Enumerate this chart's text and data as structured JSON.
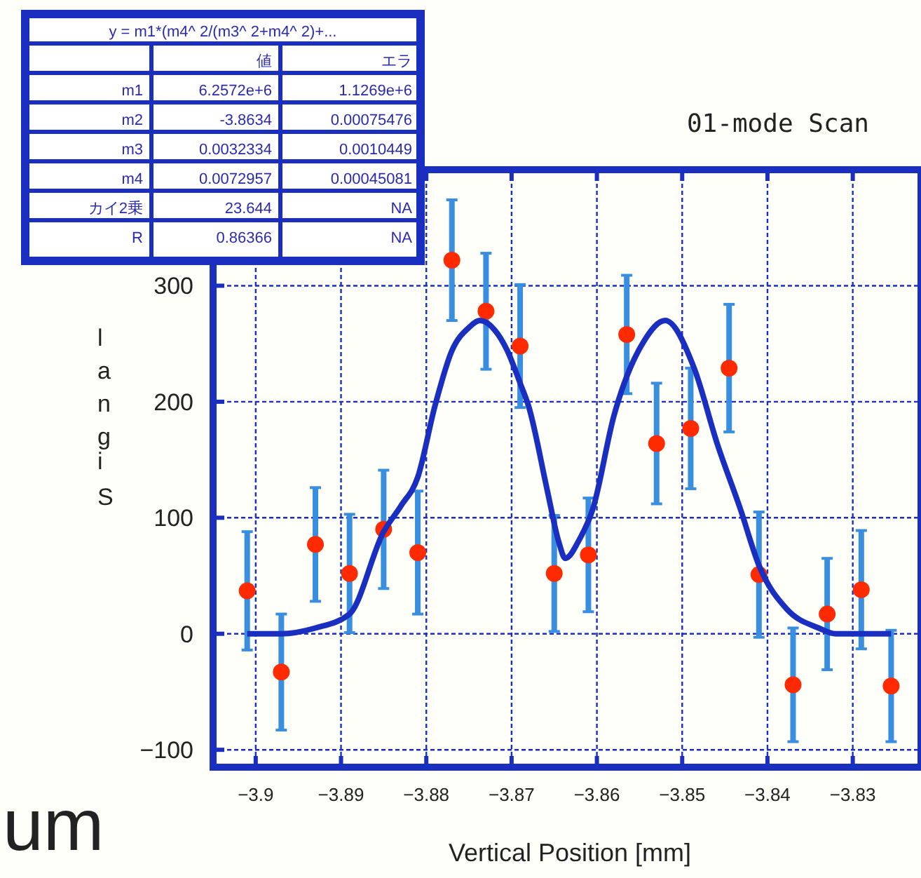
{
  "chart_data": {
    "type": "scatter",
    "title": "01-mode Scan",
    "xlabel": "Vertical Position  [mm]",
    "ylabel": "Signal",
    "annotations": [
      "um",
      "y = m1*(m4^ 2/(m3^ 2+m4^ 2)+...",
      "値",
      "エラ",
      "m1",
      "6.2572e+6",
      "1.1269e+6",
      "m2",
      "-3.8634",
      "0.00075476",
      "m3",
      "0.0032334",
      "0.0010449",
      "m4",
      "0.0072957",
      "0.00045081",
      "カイ2乗",
      "23.644",
      "NA",
      "R",
      "0.86366",
      "NA"
    ],
    "xlim": [
      -3.905,
      -3.822
    ],
    "xticks": [
      -3.9,
      -3.89,
      -3.88,
      -3.87,
      -3.86,
      -3.85,
      -3.84,
      -3.83
    ],
    "ylim": [
      -115,
      400
    ],
    "yticks": [
      -100,
      0,
      100,
      200,
      300
    ],
    "grid": true,
    "series": [
      {
        "color": "#ff2a00",
        "marker": "circle",
        "x": [
          -3.901,
          -3.897,
          -3.893,
          -3.889,
          -3.885,
          -3.881,
          -3.877,
          -3.873,
          -3.869,
          -3.865,
          -3.861,
          -3.8565,
          -3.853,
          -3.849,
          -3.8445,
          -3.841,
          -3.837,
          -3.833,
          -3.829,
          -3.8255
        ],
        "values": [
          37,
          -33,
          77,
          52,
          90,
          70,
          322,
          278,
          248,
          52,
          68,
          258,
          164,
          177,
          229,
          51,
          -44,
          17,
          38,
          -45
        ],
        "errors": [
          51,
          50,
          49,
          51,
          51,
          53,
          52,
          50,
          53,
          50,
          49,
          51,
          52,
          52,
          55,
          54,
          49,
          48,
          51,
          48
        ]
      },
      {
        "type": "line",
        "color": "#1a2fbf",
        "line_style": "solid",
        "x": [
          -3.901,
          -3.897,
          -3.893,
          -3.889,
          -3.885,
          -3.883,
          -3.881,
          -3.879,
          -3.877,
          -3.875,
          -3.8737,
          -3.872,
          -3.8705,
          -3.869,
          -3.868,
          -3.8658,
          -3.8645,
          -3.8637,
          -3.862,
          -3.8605,
          -3.858,
          -3.8545,
          -3.852,
          -3.8486,
          -3.8459,
          -3.8432,
          -3.841,
          -3.8377,
          -3.834,
          -3.832,
          -3.8255
        ],
        "values": [
          0,
          0,
          5,
          17,
          88,
          110,
          135,
          196,
          244,
          264,
          270,
          262,
          244,
          216,
          196,
          123,
          80,
          65,
          82,
          107,
          188,
          252,
          270,
          229,
          164,
          108,
          59,
          21,
          5,
          0,
          0
        ]
      }
    ]
  }
}
